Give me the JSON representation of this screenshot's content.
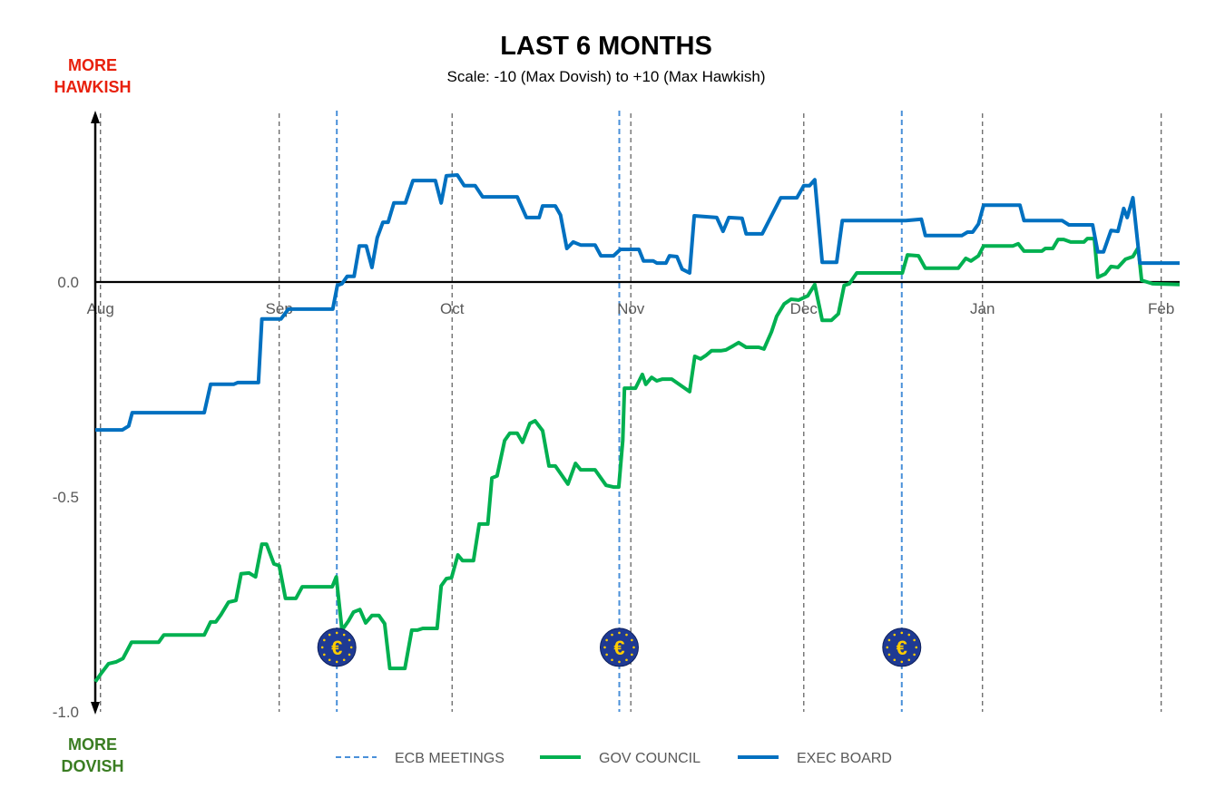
{
  "chart_data": {
    "type": "line",
    "title": "LAST 6 MONTHS",
    "subtitle": "Scale: -10 (Max Dovish)  to +10 (Max Hawkish)",
    "top_label": [
      "MORE",
      "HAWKISH"
    ],
    "bottom_label": [
      "MORE",
      "DOVISH"
    ],
    "x_unit": "days since Aug 1",
    "xlim": [
      -0.9,
      187.2
    ],
    "ylim": [
      -1.0,
      0.39
    ],
    "yticks": [
      {
        "value": 0,
        "label": "0.0"
      },
      {
        "value": -0.5,
        "label": "-0.5"
      },
      {
        "value": -1.0,
        "label": "-1.0"
      }
    ],
    "xticks": [
      {
        "day": 0,
        "label": "Aug"
      },
      {
        "day": 31,
        "label": "Sep"
      },
      {
        "day": 61,
        "label": "Oct"
      },
      {
        "day": 92,
        "label": "Nov"
      },
      {
        "day": 122,
        "label": "Dec"
      },
      {
        "day": 153,
        "label": "Jan"
      },
      {
        "day": 184,
        "label": "Feb"
      }
    ],
    "ecb_meetings": [
      41,
      90,
      139
    ],
    "ecb_icon_value": -0.85,
    "legend": [
      {
        "name": "ECB MEETINGS",
        "color": "#4a90d9",
        "style": "dashed"
      },
      {
        "name": "GOV COUNCIL",
        "color": "#00b050",
        "style": "solid"
      },
      {
        "name": "EXEC BOARD",
        "color": "#0070c0",
        "style": "solid"
      }
    ],
    "series": [
      {
        "name": "EXEC BOARD",
        "color": "#0070c0",
        "points": [
          [
            -0.9,
            -0.344
          ],
          [
            3.8,
            -0.344
          ],
          [
            4.9,
            -0.335
          ],
          [
            5.5,
            -0.304
          ],
          [
            18.0,
            -0.304
          ],
          [
            19.1,
            -0.238
          ],
          [
            23.1,
            -0.238
          ],
          [
            23.8,
            -0.234
          ],
          [
            27.4,
            -0.234
          ],
          [
            28.0,
            -0.086
          ],
          [
            31.3,
            -0.086
          ],
          [
            32.6,
            -0.063
          ],
          [
            40.3,
            -0.063
          ],
          [
            41.1,
            -0.008
          ],
          [
            41.9,
            -0.004
          ],
          [
            42.8,
            0.013
          ],
          [
            44.0,
            0.013
          ],
          [
            44.9,
            0.084
          ],
          [
            46.1,
            0.084
          ],
          [
            47.1,
            0.034
          ],
          [
            48.0,
            0.103
          ],
          [
            49.0,
            0.139
          ],
          [
            49.9,
            0.139
          ],
          [
            50.9,
            0.184
          ],
          [
            52.9,
            0.184
          ],
          [
            54.2,
            0.236
          ],
          [
            58.1,
            0.236
          ],
          [
            59.1,
            0.184
          ],
          [
            60.0,
            0.247
          ],
          [
            61.9,
            0.249
          ],
          [
            63.1,
            0.224
          ],
          [
            65.0,
            0.224
          ],
          [
            66.3,
            0.198
          ],
          [
            72.3,
            0.198
          ],
          [
            73.9,
            0.15
          ],
          [
            76.1,
            0.15
          ],
          [
            76.7,
            0.177
          ],
          [
            78.9,
            0.177
          ],
          [
            79.8,
            0.156
          ],
          [
            80.9,
            0.078
          ],
          [
            82.0,
            0.093
          ],
          [
            83.3,
            0.086
          ],
          [
            85.8,
            0.086
          ],
          [
            86.8,
            0.061
          ],
          [
            89.0,
            0.061
          ],
          [
            90.2,
            0.076
          ],
          [
            93.4,
            0.076
          ],
          [
            94.2,
            0.049
          ],
          [
            95.9,
            0.049
          ],
          [
            96.5,
            0.044
          ],
          [
            98.1,
            0.044
          ],
          [
            98.7,
            0.061
          ],
          [
            100.0,
            0.059
          ],
          [
            100.9,
            0.03
          ],
          [
            102.2,
            0.021
          ],
          [
            103.0,
            0.154
          ],
          [
            106.9,
            0.15
          ],
          [
            108.0,
            0.118
          ],
          [
            109.0,
            0.15
          ],
          [
            111.3,
            0.148
          ],
          [
            112.0,
            0.112
          ],
          [
            114.8,
            0.112
          ],
          [
            116.4,
            0.154
          ],
          [
            118.0,
            0.196
          ],
          [
            120.8,
            0.196
          ],
          [
            122.0,
            0.224
          ],
          [
            123.0,
            0.224
          ],
          [
            123.9,
            0.238
          ],
          [
            125.2,
            0.046
          ],
          [
            127.7,
            0.046
          ],
          [
            128.7,
            0.143
          ],
          [
            139.7,
            0.143
          ],
          [
            142.4,
            0.146
          ],
          [
            143.1,
            0.108
          ],
          [
            149.4,
            0.108
          ],
          [
            150.4,
            0.116
          ],
          [
            151.3,
            0.116
          ],
          [
            152.3,
            0.135
          ],
          [
            153.2,
            0.179
          ],
          [
            159.5,
            0.179
          ],
          [
            160.2,
            0.143
          ],
          [
            166.8,
            0.143
          ],
          [
            168.0,
            0.133
          ],
          [
            172.1,
            0.133
          ],
          [
            173.0,
            0.07
          ],
          [
            174.0,
            0.07
          ],
          [
            175.3,
            0.12
          ],
          [
            176.5,
            0.118
          ],
          [
            177.5,
            0.171
          ],
          [
            178.1,
            0.15
          ],
          [
            179.1,
            0.196
          ],
          [
            180.3,
            0.044
          ],
          [
            187.2,
            0.044
          ]
        ]
      },
      {
        "name": "GOV COUNCIL",
        "color": "#00b050",
        "points": [
          [
            -0.9,
            -0.93
          ],
          [
            0.2,
            -0.909
          ],
          [
            1.4,
            -0.888
          ],
          [
            2.7,
            -0.884
          ],
          [
            3.9,
            -0.876
          ],
          [
            5.4,
            -0.838
          ],
          [
            10.1,
            -0.838
          ],
          [
            11.0,
            -0.821
          ],
          [
            18.0,
            -0.821
          ],
          [
            19.1,
            -0.791
          ],
          [
            20.0,
            -0.791
          ],
          [
            20.9,
            -0.774
          ],
          [
            22.2,
            -0.745
          ],
          [
            23.5,
            -0.741
          ],
          [
            24.4,
            -0.679
          ],
          [
            25.8,
            -0.677
          ],
          [
            26.9,
            -0.686
          ],
          [
            28.0,
            -0.61
          ],
          [
            28.8,
            -0.61
          ],
          [
            30.1,
            -0.656
          ],
          [
            31.0,
            -0.66
          ],
          [
            32.1,
            -0.736
          ],
          [
            33.9,
            -0.736
          ],
          [
            35.0,
            -0.709
          ],
          [
            40.2,
            -0.709
          ],
          [
            40.9,
            -0.686
          ],
          [
            41.9,
            -0.81
          ],
          [
            43.0,
            -0.789
          ],
          [
            43.9,
            -0.768
          ],
          [
            45.0,
            -0.762
          ],
          [
            46.0,
            -0.793
          ],
          [
            47.1,
            -0.776
          ],
          [
            48.3,
            -0.776
          ],
          [
            49.3,
            -0.795
          ],
          [
            50.2,
            -0.899
          ],
          [
            52.8,
            -0.899
          ],
          [
            54.0,
            -0.81
          ],
          [
            55.0,
            -0.81
          ],
          [
            55.9,
            -0.806
          ],
          [
            58.4,
            -0.806
          ],
          [
            59.1,
            -0.707
          ],
          [
            60.0,
            -0.69
          ],
          [
            60.9,
            -0.688
          ],
          [
            62.0,
            -0.635
          ],
          [
            62.8,
            -0.648
          ],
          [
            64.7,
            -0.648
          ],
          [
            65.7,
            -0.563
          ],
          [
            67.2,
            -0.563
          ],
          [
            67.9,
            -0.456
          ],
          [
            68.8,
            -0.451
          ],
          [
            70.1,
            -0.369
          ],
          [
            71.0,
            -0.352
          ],
          [
            72.3,
            -0.352
          ],
          [
            73.2,
            -0.373
          ],
          [
            74.5,
            -0.329
          ],
          [
            75.4,
            -0.323
          ],
          [
            76.7,
            -0.346
          ],
          [
            77.8,
            -0.428
          ],
          [
            78.9,
            -0.428
          ],
          [
            81.1,
            -0.47
          ],
          [
            82.4,
            -0.422
          ],
          [
            83.3,
            -0.437
          ],
          [
            85.8,
            -0.437
          ],
          [
            87.7,
            -0.473
          ],
          [
            89.0,
            -0.477
          ],
          [
            89.9,
            -0.477
          ],
          [
            90.6,
            -0.369
          ],
          [
            90.9,
            -0.247
          ],
          [
            92.8,
            -0.247
          ],
          [
            94.0,
            -0.215
          ],
          [
            94.6,
            -0.238
          ],
          [
            95.6,
            -0.222
          ],
          [
            96.5,
            -0.23
          ],
          [
            97.5,
            -0.226
          ],
          [
            99.1,
            -0.226
          ],
          [
            102.2,
            -0.255
          ],
          [
            103.1,
            -0.173
          ],
          [
            104.1,
            -0.179
          ],
          [
            105.0,
            -0.171
          ],
          [
            106.0,
            -0.16
          ],
          [
            107.6,
            -0.16
          ],
          [
            108.5,
            -0.158
          ],
          [
            109.8,
            -0.148
          ],
          [
            110.7,
            -0.141
          ],
          [
            112.0,
            -0.152
          ],
          [
            114.2,
            -0.152
          ],
          [
            115.1,
            -0.156
          ],
          [
            116.4,
            -0.116
          ],
          [
            117.3,
            -0.08
          ],
          [
            118.6,
            -0.051
          ],
          [
            119.8,
            -0.04
          ],
          [
            121.1,
            -0.042
          ],
          [
            122.7,
            -0.032
          ],
          [
            123.9,
            -0.006
          ],
          [
            125.2,
            -0.089
          ],
          [
            126.8,
            -0.089
          ],
          [
            128.0,
            -0.074
          ],
          [
            129.0,
            -0.008
          ],
          [
            129.9,
            -0.004
          ],
          [
            131.2,
            0.021
          ],
          [
            139.1,
            0.021
          ],
          [
            140.0,
            0.063
          ],
          [
            141.9,
            0.061
          ],
          [
            143.1,
            0.032
          ],
          [
            148.8,
            0.032
          ],
          [
            150.1,
            0.055
          ],
          [
            151.0,
            0.049
          ],
          [
            152.3,
            0.061
          ],
          [
            153.2,
            0.084
          ],
          [
            158.3,
            0.084
          ],
          [
            159.2,
            0.089
          ],
          [
            160.2,
            0.072
          ],
          [
            163.3,
            0.072
          ],
          [
            163.9,
            0.078
          ],
          [
            165.2,
            0.078
          ],
          [
            166.1,
            0.099
          ],
          [
            167.1,
            0.099
          ],
          [
            168.3,
            0.093
          ],
          [
            170.6,
            0.093
          ],
          [
            171.2,
            0.101
          ],
          [
            172.4,
            0.101
          ],
          [
            173.0,
            0.011
          ],
          [
            174.3,
            0.019
          ],
          [
            175.3,
            0.036
          ],
          [
            176.5,
            0.034
          ],
          [
            177.8,
            0.053
          ],
          [
            179.1,
            0.059
          ],
          [
            180.0,
            0.08
          ],
          [
            180.6,
            0.004
          ],
          [
            182.5,
            -0.004
          ],
          [
            187.2,
            -0.006
          ]
        ]
      }
    ]
  }
}
